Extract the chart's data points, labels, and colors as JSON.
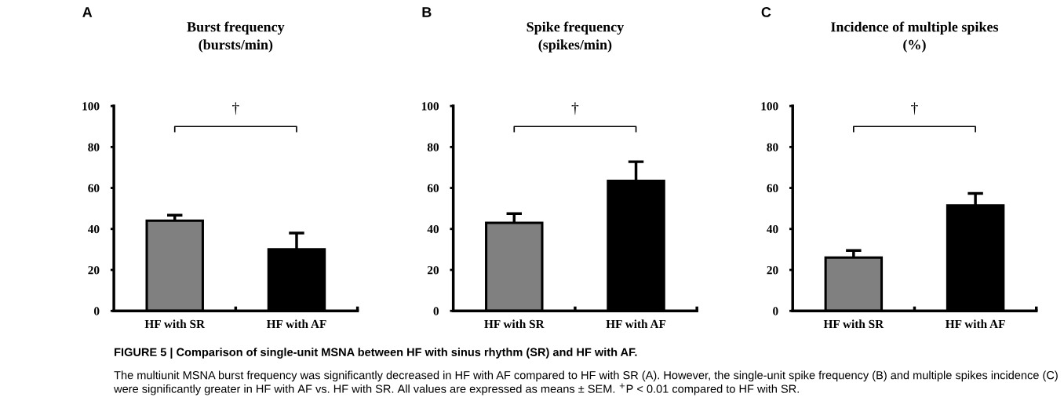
{
  "chart_data": [
    {
      "type": "bar",
      "title": "Burst frequency\n(bursts/min)",
      "categories": [
        "HF with SR",
        "HF with AF"
      ],
      "values": [
        44,
        30
      ],
      "errors": [
        2.7,
        8
      ],
      "colors": [
        "#808080",
        "#000000"
      ],
      "ylim": [
        0,
        100
      ],
      "yticks": [
        0,
        20,
        40,
        60,
        80,
        100
      ],
      "grid": false,
      "legend": false,
      "annotations": [
        "A",
        "†",
        "FIGURE 5 | Comparison of single-unit MSNA between HF with sinus rhythm (SR) and HF with AF.",
        "The multiunit MSNA burst frequency was significantly decreased in HF with AF compared to HF with SR (A). However, the single-unit spike frequency (B) and multiple spikes incidence (C) were significantly greater in HF with AF vs. HF with SR. All values are expressed as means ± SEM. $^{+}$P < 0.01 compared to HF with SR."
      ]
    },
    {
      "type": "bar",
      "title": "Spike frequency\n(spikes/min)",
      "categories": [
        "HF with SR",
        "HF with AF"
      ],
      "values": [
        43,
        63.5
      ],
      "errors": [
        4.5,
        9.3
      ],
      "colors": [
        "#808080",
        "#000000"
      ],
      "ylim": [
        0,
        100
      ],
      "yticks": [
        0,
        20,
        40,
        60,
        80,
        100
      ],
      "grid": false,
      "legend": false,
      "annotations": [
        "B",
        "†"
      ]
    },
    {
      "type": "bar",
      "title": "Incidence of multiple spikes\n(%)",
      "categories": [
        "HF with SR",
        "HF with AF"
      ],
      "values": [
        26,
        51.5
      ],
      "errors": [
        3.5,
        5.8
      ],
      "colors": [
        "#808080",
        "#000000"
      ],
      "ylim": [
        0,
        100
      ],
      "yticks": [
        0,
        20,
        40,
        60,
        80,
        100
      ],
      "grid": false,
      "legend": false,
      "annotations": [
        "C",
        "†"
      ]
    }
  ]
}
